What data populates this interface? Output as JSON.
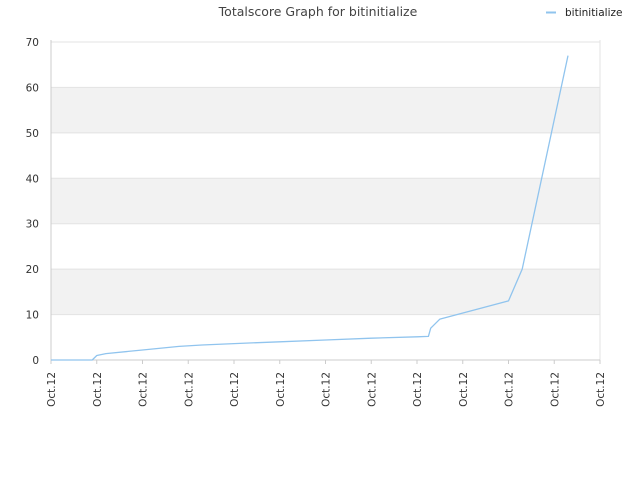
{
  "chart_data": {
    "type": "line",
    "title": "Totalscore Graph for bitinitialize",
    "xlabel": "",
    "ylabel": "",
    "ylim": [
      0,
      70
    ],
    "yticks": [
      0,
      10,
      20,
      30,
      40,
      50,
      60,
      70
    ],
    "xticks": [
      "Oct.12",
      "Oct.12",
      "Oct.12",
      "Oct.12",
      "Oct.12",
      "Oct.12",
      "Oct.12",
      "Oct.12",
      "Oct.12",
      "Oct.12",
      "Oct.12",
      "Oct.12",
      "Oct.12"
    ],
    "grid": true,
    "legend_position": "top-right",
    "series": [
      {
        "name": "bitinitialize",
        "color": "#90c4ee",
        "points": [
          [
            0.0,
            0.0
          ],
          [
            0.9,
            0.0
          ],
          [
            1.0,
            1.0
          ],
          [
            1.2,
            1.4
          ],
          [
            2.0,
            2.2
          ],
          [
            2.8,
            3.0
          ],
          [
            3.3,
            3.3
          ],
          [
            4.0,
            3.6
          ],
          [
            5.0,
            4.0
          ],
          [
            6.0,
            4.4
          ],
          [
            7.0,
            4.8
          ],
          [
            8.0,
            5.1
          ],
          [
            8.25,
            5.2
          ],
          [
            8.3,
            7.0
          ],
          [
            8.5,
            9.0
          ],
          [
            10.0,
            13.0
          ],
          [
            10.3,
            20.0
          ],
          [
            11.3,
            67.0
          ]
        ]
      }
    ]
  }
}
